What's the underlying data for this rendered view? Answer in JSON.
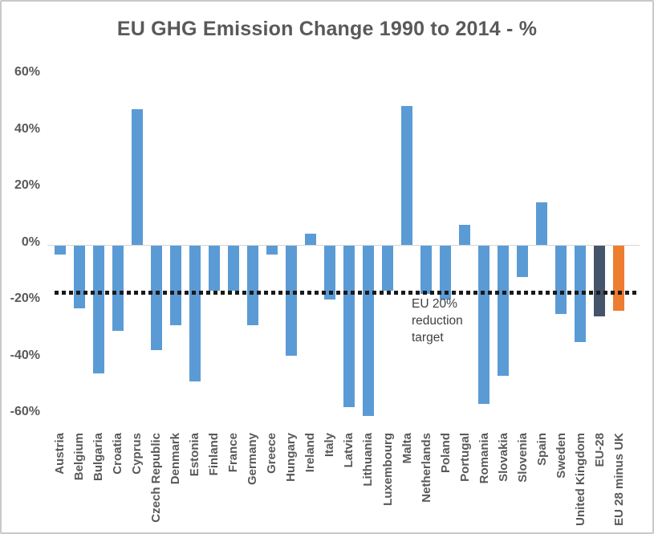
{
  "title": "EU GHG Emission Change 1990 to 2014 - %",
  "annotation": {
    "lines": [
      "EU 20%",
      "reduction",
      "target"
    ]
  },
  "chart_data": {
    "type": "bar",
    "title": "EU GHG Emission Change 1990 to 2014 - %",
    "xlabel": "",
    "ylabel": "",
    "categories": [
      "Austria",
      "Belgium",
      "Bulgaria",
      "Croatia",
      "Cyprus",
      "Czech Republic",
      "Denmark",
      "Estonia",
      "Finland",
      "France",
      "Germany",
      "Greece",
      "Hungary",
      "Ireland",
      "Italy",
      "Latvia",
      "Lithuania",
      "Luxembourg",
      "Malta",
      "Netherlands",
      "Poland",
      "Portugal",
      "Romania",
      "Slovakia",
      "Slovenia",
      "Spain",
      "Sweden",
      "United Kingdom",
      "EU-28",
      "EU 28 minus UK"
    ],
    "values": [
      -3,
      -22,
      -45,
      -30,
      48,
      -37,
      -28,
      -48,
      -16,
      -16,
      -28,
      -3,
      -39,
      4,
      -19,
      -57,
      -60,
      -16,
      49,
      -17,
      -19,
      7,
      -56,
      -46,
      -11,
      15,
      -24,
      -34,
      -25,
      -23
    ],
    "bar_colors": [
      "#5B9BD5",
      "#5B9BD5",
      "#5B9BD5",
      "#5B9BD5",
      "#5B9BD5",
      "#5B9BD5",
      "#5B9BD5",
      "#5B9BD5",
      "#5B9BD5",
      "#5B9BD5",
      "#5B9BD5",
      "#5B9BD5",
      "#5B9BD5",
      "#5B9BD5",
      "#5B9BD5",
      "#5B9BD5",
      "#5B9BD5",
      "#5B9BD5",
      "#5B9BD5",
      "#5B9BD5",
      "#5B9BD5",
      "#5B9BD5",
      "#5B9BD5",
      "#5B9BD5",
      "#5B9BD5",
      "#5B9BD5",
      "#5B9BD5",
      "#5B9BD5",
      "#44546A",
      "#ED7D31"
    ],
    "y_ticks": [
      60,
      40,
      20,
      0,
      -20,
      -40,
      -60
    ],
    "y_tick_labels": [
      "60%",
      "40%",
      "20%",
      "0%",
      "-20%",
      "-40%",
      "-60%"
    ],
    "ylim": [
      -63,
      63
    ],
    "grid": false,
    "legend": false,
    "target_line": {
      "value": -17,
      "label": "EU 20% reduction target",
      "style": "dotted",
      "color": "#1A1A1A"
    },
    "colors": {
      "default_bar": "#5B9BD5",
      "eu28_bar": "#44546A",
      "eu28_minus_uk_bar": "#ED7D31",
      "axis_text": "#595959",
      "annotation_text": "#404040",
      "zero_axis_line": "#D6D6D6",
      "frame_border": "#C9C9C9"
    }
  }
}
